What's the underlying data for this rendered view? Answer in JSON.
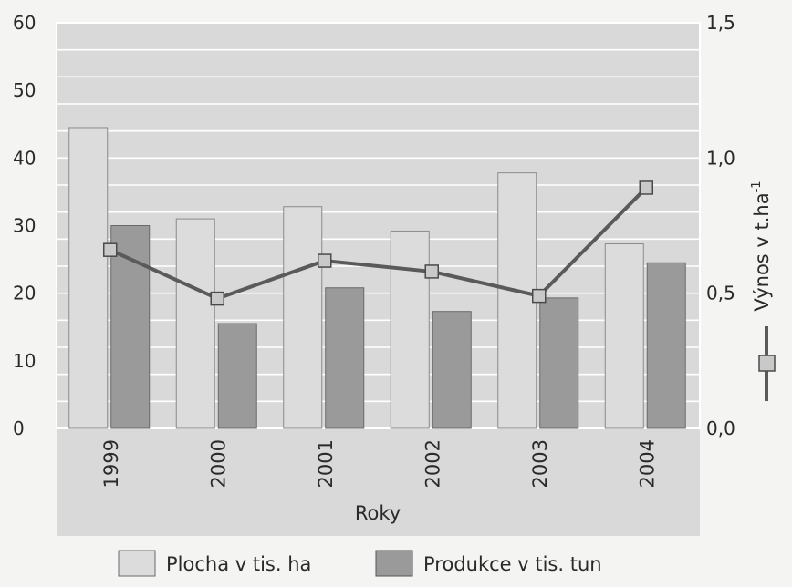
{
  "chart_data": {
    "type": "bar",
    "categories": [
      "1999",
      "2000",
      "2001",
      "2002",
      "2003",
      "2004"
    ],
    "xlabel": "Roky",
    "ylim": [
      0,
      60
    ],
    "y_ticks": [
      "60",
      "50",
      "40",
      "30",
      "20",
      "10",
      "0"
    ],
    "y2lim": [
      0,
      1.5
    ],
    "y2_ticks": [
      "1,5",
      "1,0",
      "0,5",
      "0,0"
    ],
    "y2label": "Výnos v t.ha",
    "y2label_sup": "-1",
    "grid": true,
    "legend_position": "bottom",
    "series": [
      {
        "name": "Plocha v tis. ha",
        "type": "bar",
        "axis": "left",
        "color": "#dcdcdc",
        "values": [
          44.5,
          31.0,
          32.8,
          29.2,
          37.8,
          27.3
        ]
      },
      {
        "name": "Produkce v tis. tun",
        "type": "bar",
        "axis": "left",
        "color": "#9a9a9a",
        "values": [
          30.0,
          15.5,
          20.8,
          17.3,
          19.3,
          24.5
        ]
      },
      {
        "name": "Výnos v t.ha-1",
        "type": "line",
        "axis": "right",
        "color": "#5a5a5a",
        "values": [
          0.66,
          0.48,
          0.62,
          0.58,
          0.49,
          0.89
        ]
      }
    ]
  }
}
